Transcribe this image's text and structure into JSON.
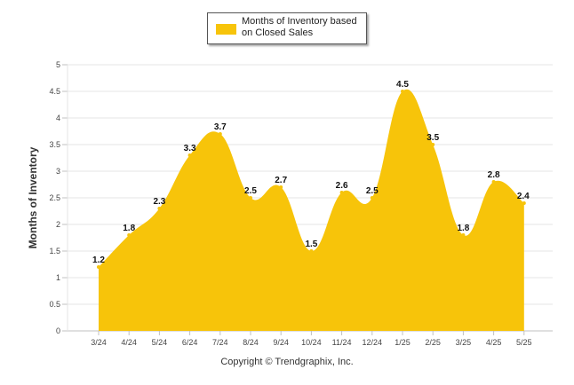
{
  "chart_data": {
    "type": "area",
    "categories": [
      "3/24",
      "4/24",
      "5/24",
      "6/24",
      "7/24",
      "8/24",
      "9/24",
      "10/24",
      "11/24",
      "12/24",
      "1/25",
      "2/25",
      "3/25",
      "4/25",
      "5/25"
    ],
    "series": [
      {
        "name": "Months of Inventory based on Closed Sales",
        "values": [
          1.2,
          1.8,
          2.3,
          3.3,
          3.7,
          2.5,
          2.7,
          1.5,
          2.6,
          2.5,
          4.5,
          3.5,
          1.8,
          2.8,
          2.4
        ],
        "color": "#F7C40A"
      }
    ],
    "ylabel": "Months of Inventory",
    "xlabel": "",
    "ylim": [
      0,
      5
    ],
    "yticks": [
      "0",
      "0.5",
      "1",
      "1.5",
      "2",
      "2.5",
      "3",
      "3.5",
      "4",
      "4.5",
      "5"
    ],
    "grid": true,
    "smooth": true,
    "data_labels": true,
    "legend_position": "top-center"
  },
  "legend": {
    "label": "Months of Inventory based on Closed Sales"
  },
  "footer": {
    "copyright": "Copyright © Trendgraphix, Inc."
  }
}
